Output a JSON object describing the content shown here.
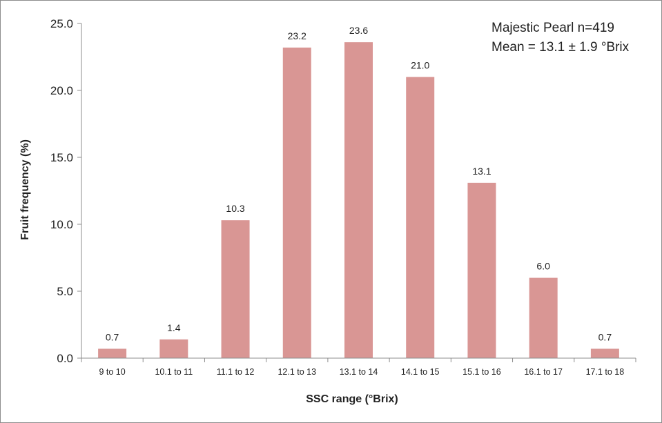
{
  "chart_data": {
    "type": "bar",
    "title": "",
    "xlabel": "SSC range (°Brix)",
    "ylabel": "Fruit frequency (%)",
    "ylim": [
      0,
      25
    ],
    "yticks": [
      "0.0",
      "5.0",
      "10.0",
      "15.0",
      "20.0",
      "25.0"
    ],
    "grid": false,
    "bar_color": "#d99694",
    "categories": [
      "9 to 10",
      "10.1 to 11",
      "11.1 to 12",
      "12.1 to 13",
      "13.1 to 14",
      "14.1 to 15",
      "15.1 to 16",
      "16.1 to 17",
      "17.1 to 18"
    ],
    "values": [
      0.7,
      1.4,
      10.3,
      23.2,
      23.6,
      21.0,
      13.1,
      6.0,
      0.7
    ],
    "data_labels": [
      "0.7",
      "1.4",
      "10.3",
      "23.2",
      "23.6",
      "21.0",
      "13.1",
      "6.0",
      "0.7"
    ],
    "annotations": [
      "Majestic Pearl n=419",
      "Mean = 13.1 ± 1.9 °Brix"
    ]
  }
}
